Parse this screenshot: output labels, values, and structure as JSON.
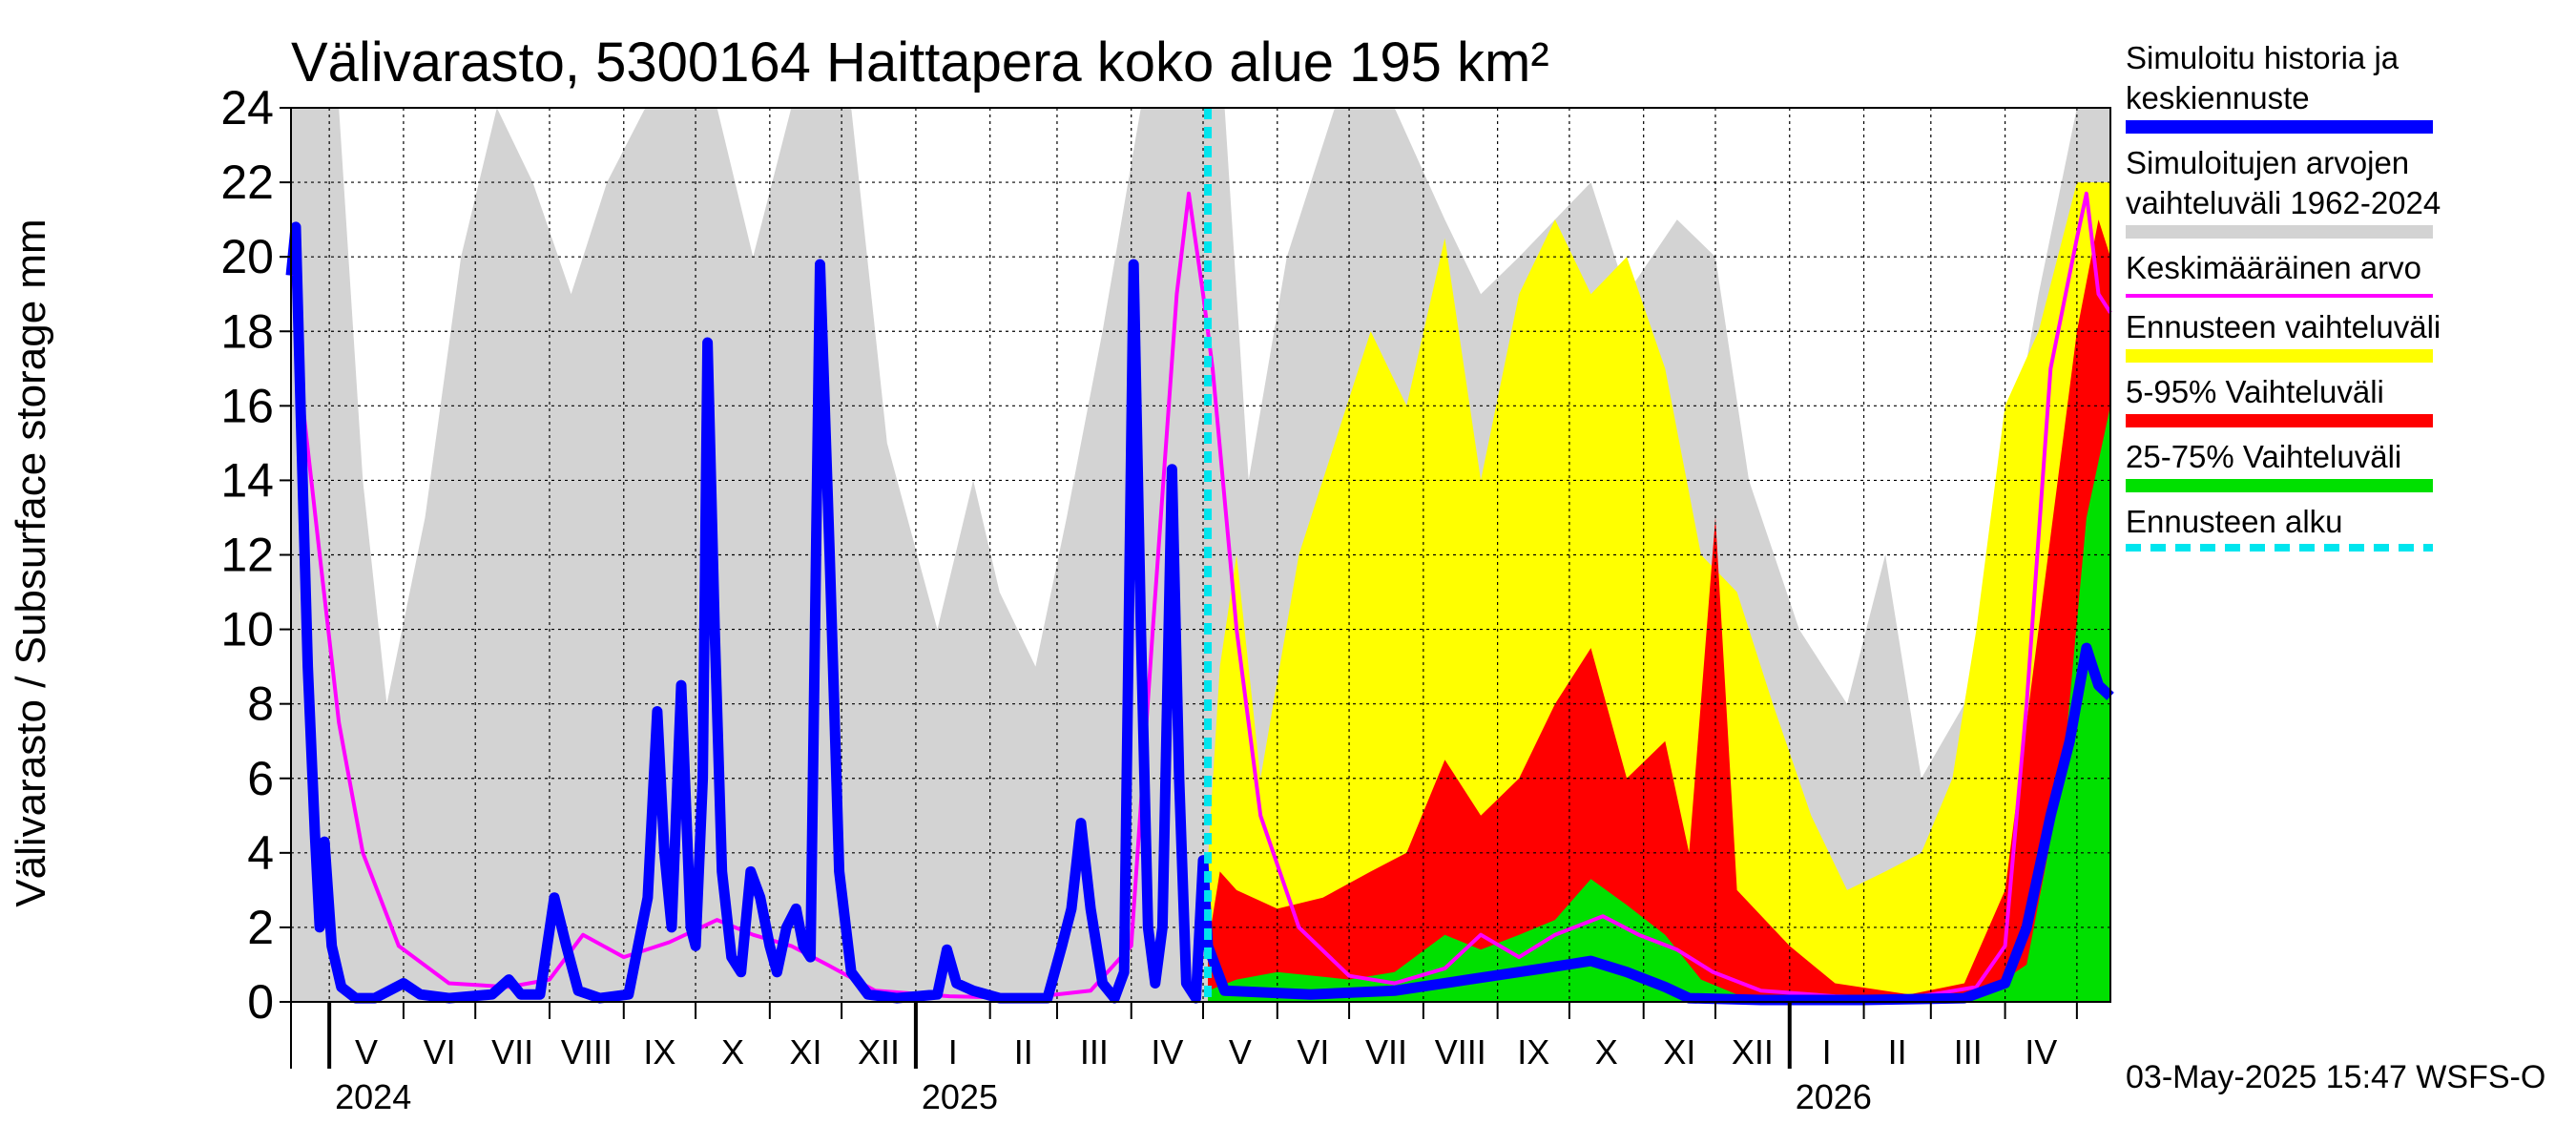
{
  "title": "Välivarasto, 5300164 Haittapera koko alue 195 km²",
  "ylabel": "Välivarasto / Subsurface storage  mm",
  "footer": "03-May-2025 15:47 WSFS-O",
  "colors": {
    "history": "#0000ff",
    "range_hist": "#d3d3d3",
    "mean": "#ff00ff",
    "forecast_range": "#ffff00",
    "p5_95": "#ff0000",
    "p25_75": "#00e000",
    "forecast_start": "#00e5ee"
  },
  "legend": [
    {
      "label": "Simuloitu historia ja\nkeskiennuste",
      "color": "#0000ff",
      "style": "solid"
    },
    {
      "label": "Simuloitujen arvojen\nvaihteluväli 1962-2024",
      "color": "#d3d3d3",
      "style": "solid"
    },
    {
      "label": "Keskimääräinen arvo",
      "color": "#ff00ff",
      "style": "thin"
    },
    {
      "label": "Ennusteen vaihteluväli",
      "color": "#ffff00",
      "style": "solid"
    },
    {
      "label": "5-95% Vaihteluväli",
      "color": "#ff0000",
      "style": "solid"
    },
    {
      "label": "25-75% Vaihteluväli",
      "color": "#00e000",
      "style": "solid"
    },
    {
      "label": "Ennusteen alku",
      "color": "#00e5ee",
      "style": "dashed"
    }
  ],
  "chart_data": {
    "type": "area",
    "ylim": [
      0,
      24
    ],
    "yticks": [
      "0",
      "2",
      "4",
      "6",
      "8",
      "10",
      "12",
      "14",
      "16",
      "18",
      "20",
      "22",
      "24"
    ],
    "xrange": [
      "2024-04-15",
      "2026-05-15"
    ],
    "forecast_start": "2025-05-03",
    "months": [
      "V",
      "VI",
      "VII",
      "VIII",
      "IX",
      "X",
      "XI",
      "XII",
      "I",
      "II",
      "III",
      "IV",
      "V",
      "VI",
      "VII",
      "VIII",
      "IX",
      "X",
      "XI",
      "XII",
      "I",
      "II",
      "III",
      "IV"
    ],
    "years": [
      {
        "label": "2024",
        "date": "2024-05-01"
      },
      {
        "label": "2025",
        "date": "2025-01-01"
      },
      {
        "label": "2026",
        "date": "2026-01-01"
      }
    ],
    "history": {
      "name": "Simuloitu historia ja keskiennuste",
      "points": [
        [
          "2024-04-15",
          19.5
        ],
        [
          "2024-04-17",
          20.8
        ],
        [
          "2024-04-19",
          16
        ],
        [
          "2024-04-22",
          9
        ],
        [
          "2024-04-25",
          4.5
        ],
        [
          "2024-04-27",
          2
        ],
        [
          "2024-04-29",
          4.3
        ],
        [
          "2024-05-02",
          1.5
        ],
        [
          "2024-05-06",
          0.4
        ],
        [
          "2024-05-12",
          0.1
        ],
        [
          "2024-05-20",
          0.1
        ],
        [
          "2024-06-01",
          0.5
        ],
        [
          "2024-06-08",
          0.2
        ],
        [
          "2024-06-20",
          0.1
        ],
        [
          "2024-07-08",
          0.2
        ],
        [
          "2024-07-15",
          0.6
        ],
        [
          "2024-07-20",
          0.2
        ],
        [
          "2024-07-28",
          0.2
        ],
        [
          "2024-08-03",
          2.8
        ],
        [
          "2024-08-08",
          1.5
        ],
        [
          "2024-08-13",
          0.3
        ],
        [
          "2024-08-22",
          0.1
        ],
        [
          "2024-09-03",
          0.2
        ],
        [
          "2024-09-07",
          1.5
        ],
        [
          "2024-09-11",
          2.8
        ],
        [
          "2024-09-15",
          7.8
        ],
        [
          "2024-09-18",
          4
        ],
        [
          "2024-09-21",
          2
        ],
        [
          "2024-09-25",
          8.5
        ],
        [
          "2024-09-29",
          2
        ],
        [
          "2024-10-01",
          1.5
        ],
        [
          "2024-10-04",
          6
        ],
        [
          "2024-10-06",
          17.7
        ],
        [
          "2024-10-09",
          10
        ],
        [
          "2024-10-12",
          3.5
        ],
        [
          "2024-10-16",
          1.2
        ],
        [
          "2024-10-20",
          0.8
        ],
        [
          "2024-10-24",
          3.5
        ],
        [
          "2024-10-28",
          2.8
        ],
        [
          "2024-11-01",
          1.5
        ],
        [
          "2024-11-04",
          0.8
        ],
        [
          "2024-11-08",
          2
        ],
        [
          "2024-11-12",
          2.5
        ],
        [
          "2024-11-15",
          1.5
        ],
        [
          "2024-11-18",
          1.2
        ],
        [
          "2024-11-22",
          19.8
        ],
        [
          "2024-11-26",
          12
        ],
        [
          "2024-11-30",
          3.5
        ],
        [
          "2024-12-05",
          0.8
        ],
        [
          "2024-12-12",
          0.2
        ],
        [
          "2024-12-24",
          0.1
        ],
        [
          "2025-01-10",
          0.2
        ],
        [
          "2025-01-14",
          1.4
        ],
        [
          "2025-01-18",
          0.5
        ],
        [
          "2025-01-25",
          0.3
        ],
        [
          "2025-02-05",
          0.1
        ],
        [
          "2025-02-25",
          0.1
        ],
        [
          "2025-03-03",
          1.5
        ],
        [
          "2025-03-07",
          2.5
        ],
        [
          "2025-03-11",
          4.8
        ],
        [
          "2025-03-15",
          2.5
        ],
        [
          "2025-03-20",
          0.5
        ],
        [
          "2025-03-25",
          0.1
        ],
        [
          "2025-03-29",
          0.8
        ],
        [
          "2025-04-02",
          19.8
        ],
        [
          "2025-04-05",
          10
        ],
        [
          "2025-04-08",
          2
        ],
        [
          "2025-04-11",
          0.5
        ],
        [
          "2025-04-14",
          2
        ],
        [
          "2025-04-18",
          14.3
        ],
        [
          "2025-04-21",
          6
        ],
        [
          "2025-04-24",
          0.5
        ],
        [
          "2025-04-28",
          0.1
        ],
        [
          "2025-05-01",
          3.8
        ],
        [
          "2025-05-03",
          1.5
        ],
        [
          "2025-05-10",
          0.3
        ],
        [
          "2025-06-15",
          0.2
        ],
        [
          "2025-07-20",
          0.3
        ],
        [
          "2025-08-20",
          0.6
        ],
        [
          "2025-09-20",
          0.9
        ],
        [
          "2025-10-10",
          1.1
        ],
        [
          "2025-10-25",
          0.8
        ],
        [
          "2025-11-10",
          0.4
        ],
        [
          "2025-11-20",
          0.1
        ],
        [
          "2025-12-20",
          0.05
        ],
        [
          "2026-02-01",
          0.05
        ],
        [
          "2026-03-15",
          0.1
        ],
        [
          "2026-04-01",
          0.5
        ],
        [
          "2026-04-10",
          2
        ],
        [
          "2026-04-20",
          5
        ],
        [
          "2026-04-28",
          7
        ],
        [
          "2026-05-05",
          9.5
        ],
        [
          "2026-05-10",
          8.5
        ],
        [
          "2026-05-15",
          8.2
        ]
      ]
    },
    "mean": {
      "name": "Keskimääräinen arvo",
      "points": [
        [
          "2024-04-15",
          20.3
        ],
        [
          "2024-04-20",
          16
        ],
        [
          "2024-04-27",
          12
        ],
        [
          "2024-05-05",
          7.5
        ],
        [
          "2024-05-15",
          4
        ],
        [
          "2024-05-30",
          1.5
        ],
        [
          "2024-06-20",
          0.5
        ],
        [
          "2024-07-15",
          0.4
        ],
        [
          "2024-08-01",
          0.6
        ],
        [
          "2024-08-15",
          1.8
        ],
        [
          "2024-09-01",
          1.2
        ],
        [
          "2024-09-20",
          1.6
        ],
        [
          "2024-10-10",
          2.2
        ],
        [
          "2024-10-25",
          1.8
        ],
        [
          "2024-11-10",
          1.5
        ],
        [
          "2024-11-25",
          1
        ],
        [
          "2024-12-15",
          0.3
        ],
        [
          "2025-01-15",
          0.15
        ],
        [
          "2025-02-15",
          0.1
        ],
        [
          "2025-03-15",
          0.3
        ],
        [
          "2025-04-01",
          1.5
        ],
        [
          "2025-04-10",
          10
        ],
        [
          "2025-04-20",
          19
        ],
        [
          "2025-04-25",
          21.7
        ],
        [
          "2025-05-01",
          19
        ],
        [
          "2025-05-05",
          17
        ],
        [
          "2025-05-15",
          10
        ],
        [
          "2025-05-25",
          5
        ],
        [
          "2025-06-10",
          2
        ],
        [
          "2025-07-01",
          0.7
        ],
        [
          "2025-07-20",
          0.5
        ],
        [
          "2025-08-10",
          0.9
        ],
        [
          "2025-08-25",
          1.8
        ],
        [
          "2025-09-10",
          1.2
        ],
        [
          "2025-09-25",
          1.8
        ],
        [
          "2025-10-15",
          2.3
        ],
        [
          "2025-10-30",
          1.8
        ],
        [
          "2025-11-15",
          1.4
        ],
        [
          "2025-11-30",
          0.8
        ],
        [
          "2025-12-20",
          0.3
        ],
        [
          "2026-01-20",
          0.15
        ],
        [
          "2026-02-20",
          0.1
        ],
        [
          "2026-03-20",
          0.4
        ],
        [
          "2026-04-01",
          1.5
        ],
        [
          "2026-04-10",
          8
        ],
        [
          "2026-04-20",
          17
        ],
        [
          "2026-05-01",
          20.5
        ],
        [
          "2026-05-05",
          21.7
        ],
        [
          "2026-05-10",
          19
        ],
        [
          "2026-05-15",
          18.5
        ]
      ]
    },
    "range_hist": {
      "name": "Simuloitujen arvojen vaihteluväli 1962-2024",
      "points": [
        [
          "2024-04-15",
          24
        ],
        [
          "2024-05-05",
          24
        ],
        [
          "2024-05-15",
          14
        ],
        [
          "2024-05-25",
          8
        ],
        [
          "2024-06-10",
          13
        ],
        [
          "2024-06-25",
          20
        ],
        [
          "2024-07-10",
          24
        ],
        [
          "2024-07-25",
          22
        ],
        [
          "2024-08-10",
          19
        ],
        [
          "2024-08-25",
          22
        ],
        [
          "2024-09-10",
          24
        ],
        [
          "2024-10-10",
          24
        ],
        [
          "2024-10-25",
          20
        ],
        [
          "2024-11-10",
          24
        ],
        [
          "2024-12-05",
          24
        ],
        [
          "2024-12-20",
          15
        ],
        [
          "2025-01-10",
          10
        ],
        [
          "2025-01-25",
          14
        ],
        [
          "2025-02-05",
          11
        ],
        [
          "2025-02-20",
          9
        ],
        [
          "2025-03-05",
          13
        ],
        [
          "2025-03-20",
          18
        ],
        [
          "2025-04-05",
          24
        ],
        [
          "2025-05-10",
          24
        ],
        [
          "2025-05-20",
          14
        ],
        [
          "2025-06-05",
          20
        ],
        [
          "2025-06-25",
          24
        ],
        [
          "2025-07-20",
          24
        ],
        [
          "2025-08-10",
          21
        ],
        [
          "2025-08-25",
          19
        ],
        [
          "2025-09-10",
          20
        ],
        [
          "2025-10-10",
          22
        ],
        [
          "2025-10-25",
          19
        ],
        [
          "2025-11-15",
          21
        ],
        [
          "2025-12-01",
          20
        ],
        [
          "2025-12-15",
          14
        ],
        [
          "2026-01-05",
          10
        ],
        [
          "2026-01-25",
          8
        ],
        [
          "2026-02-10",
          12
        ],
        [
          "2026-02-25",
          6
        ],
        [
          "2026-03-15",
          8
        ],
        [
          "2026-04-01",
          14
        ],
        [
          "2026-04-15",
          19
        ],
        [
          "2026-05-01",
          24
        ],
        [
          "2026-05-15",
          24
        ]
      ]
    },
    "forecast_range": {
      "name": "Ennusteen vaihteluväli",
      "points": [
        [
          "2025-05-03",
          3.8
        ],
        [
          "2025-05-08",
          9
        ],
        [
          "2025-05-15",
          12
        ],
        [
          "2025-05-25",
          6
        ],
        [
          "2025-06-10",
          12
        ],
        [
          "2025-06-25",
          15
        ],
        [
          "2025-07-10",
          18
        ],
        [
          "2025-07-25",
          16
        ],
        [
          "2025-08-10",
          20.5
        ],
        [
          "2025-08-25",
          14
        ],
        [
          "2025-09-10",
          19
        ],
        [
          "2025-09-25",
          21
        ],
        [
          "2025-10-10",
          19
        ],
        [
          "2025-10-25",
          20
        ],
        [
          "2025-11-10",
          17
        ],
        [
          "2025-11-25",
          12
        ],
        [
          "2025-12-10",
          11
        ],
        [
          "2025-12-25",
          8
        ],
        [
          "2026-01-10",
          5
        ],
        [
          "2026-01-25",
          3
        ],
        [
          "2026-02-10",
          3.5
        ],
        [
          "2026-02-25",
          4
        ],
        [
          "2026-03-10",
          6
        ],
        [
          "2026-03-20",
          10
        ],
        [
          "2026-04-01",
          16
        ],
        [
          "2026-04-15",
          18
        ],
        [
          "2026-05-01",
          22
        ],
        [
          "2026-05-15",
          22
        ]
      ]
    },
    "p5_95": {
      "name": "5-95% Vaihteluväli",
      "points": [
        [
          "2025-05-03",
          1.5
        ],
        [
          "2025-05-08",
          3.5
        ],
        [
          "2025-05-15",
          3
        ],
        [
          "2025-06-01",
          2.5
        ],
        [
          "2025-06-20",
          2.8
        ],
        [
          "2025-07-10",
          3.5
        ],
        [
          "2025-07-25",
          4
        ],
        [
          "2025-08-10",
          6.5
        ],
        [
          "2025-08-25",
          5
        ],
        [
          "2025-09-10",
          6
        ],
        [
          "2025-09-25",
          8
        ],
        [
          "2025-10-10",
          9.5
        ],
        [
          "2025-10-25",
          6
        ],
        [
          "2025-11-10",
          7
        ],
        [
          "2025-11-20",
          4
        ],
        [
          "2025-12-01",
          13
        ],
        [
          "2025-12-10",
          3
        ],
        [
          "2026-01-01",
          1.5
        ],
        [
          "2026-01-20",
          0.5
        ],
        [
          "2026-02-20",
          0.2
        ],
        [
          "2026-03-15",
          0.5
        ],
        [
          "2026-04-01",
          3
        ],
        [
          "2026-04-15",
          10
        ],
        [
          "2026-05-01",
          18
        ],
        [
          "2026-05-10",
          21
        ],
        [
          "2026-05-15",
          20
        ]
      ]
    },
    "p25_75": {
      "name": "25-75% Vaihteluväli",
      "points": [
        [
          "2025-05-03",
          0.3
        ],
        [
          "2025-05-15",
          0.6
        ],
        [
          "2025-06-01",
          0.8
        ],
        [
          "2025-07-01",
          0.6
        ],
        [
          "2025-07-20",
          0.8
        ],
        [
          "2025-08-10",
          1.8
        ],
        [
          "2025-08-25",
          1.4
        ],
        [
          "2025-09-10",
          1.8
        ],
        [
          "2025-09-25",
          2.2
        ],
        [
          "2025-10-10",
          3.3
        ],
        [
          "2025-10-25",
          2.6
        ],
        [
          "2025-11-10",
          1.8
        ],
        [
          "2025-11-25",
          0.6
        ],
        [
          "2025-12-10",
          0.2
        ],
        [
          "2026-01-10",
          0.05
        ],
        [
          "2026-03-20",
          0.1
        ],
        [
          "2026-04-10",
          1
        ],
        [
          "2026-04-25",
          6
        ],
        [
          "2026-05-05",
          13
        ],
        [
          "2026-05-15",
          16
        ]
      ]
    }
  }
}
